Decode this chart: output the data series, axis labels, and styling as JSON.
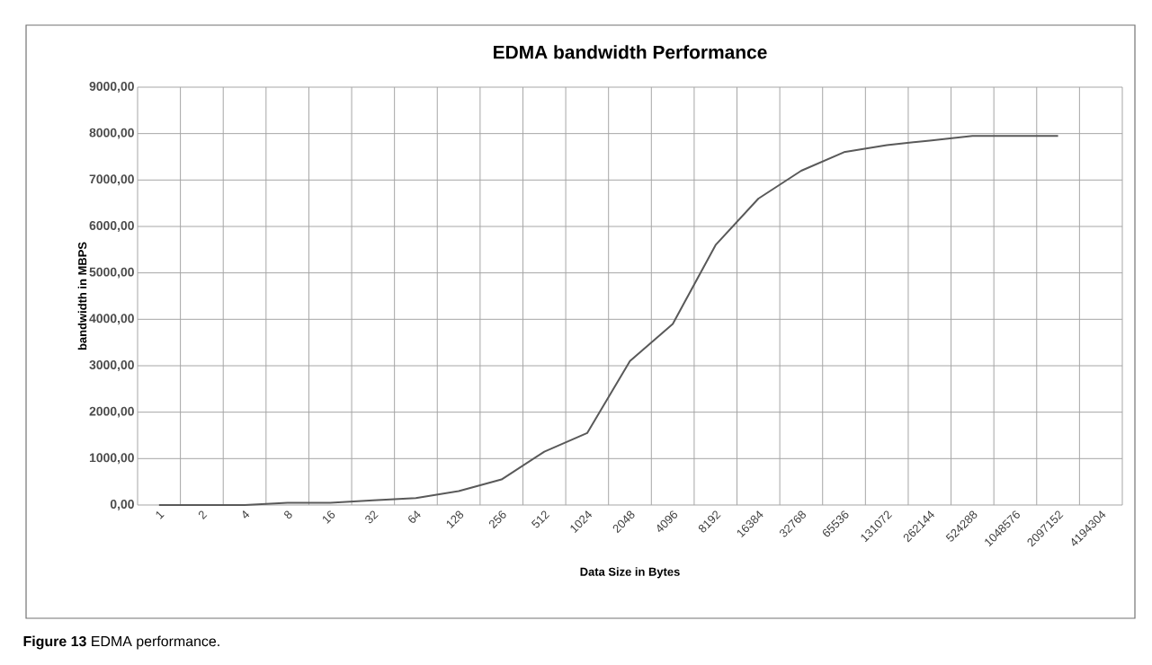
{
  "chart_data": {
    "type": "line",
    "title": "EDMA bandwidth Performance",
    "xlabel": "Data Size in Bytes",
    "ylabel": "bandwidth in MBPS",
    "annotations": [
      "**Figure 13** EDMA performance."
    ],
    "categories": [
      "1",
      "2",
      "4",
      "8",
      "16",
      "32",
      "64",
      "128",
      "256",
      "512",
      "1024",
      "2048",
      "4096",
      "8192",
      "16384",
      "32768",
      "65536",
      "131072",
      "262144",
      "524288",
      "1048576",
      "2097152",
      "4194304"
    ],
    "series": [
      {
        "color": "#595959",
        "values": [
          0,
          0,
          0,
          50,
          50,
          100,
          150,
          300,
          550,
          1150,
          1550,
          3100,
          3900,
          5600,
          6600,
          7200,
          7600,
          7750,
          7850,
          7950,
          7950,
          7950,
          null
        ]
      }
    ],
    "ylim": [
      0,
      9000
    ],
    "yticks": [
      {
        "value": 0,
        "label": "0,00"
      },
      {
        "value": 1000,
        "label": "1000,00"
      },
      {
        "value": 2000,
        "label": "2000,00"
      },
      {
        "value": 3000,
        "label": "3000,00"
      },
      {
        "value": 4000,
        "label": "4000,00"
      },
      {
        "value": 5000,
        "label": "5000,00"
      },
      {
        "value": 6000,
        "label": "6000,00"
      },
      {
        "value": 7000,
        "label": "7000,00"
      },
      {
        "value": 8000,
        "label": "8000,00"
      },
      {
        "value": 9000,
        "label": "9000,00"
      }
    ],
    "grid": true,
    "marker": "none",
    "line_style": "solid"
  }
}
